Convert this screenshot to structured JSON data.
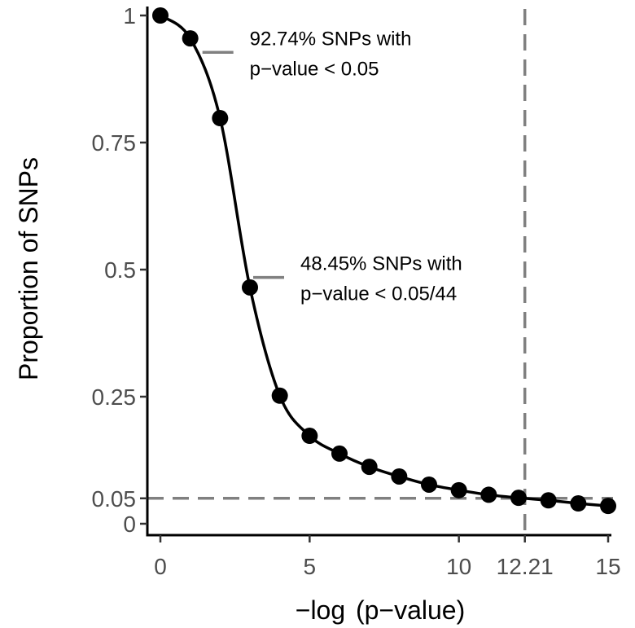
{
  "chart_data": {
    "type": "line",
    "xlabel": "−log  (p−value)",
    "ylabel": "Proportion of SNPs",
    "xlim": [
      0,
      15
    ],
    "ylim": [
      0,
      1
    ],
    "x_ticks": [
      {
        "value": 0,
        "label": "0"
      },
      {
        "value": 5,
        "label": "5"
      },
      {
        "value": 10,
        "label": "10"
      },
      {
        "value": 12.21,
        "label": "12.21"
      },
      {
        "value": 15,
        "label": "15"
      }
    ],
    "y_ticks": [
      {
        "value": 0,
        "label": "0"
      },
      {
        "value": 0.05,
        "label": "0.05"
      },
      {
        "value": 0.25,
        "label": "0.25"
      },
      {
        "value": 0.5,
        "label": "0.5"
      },
      {
        "value": 0.75,
        "label": "0.75"
      },
      {
        "value": 1,
        "label": "1"
      }
    ],
    "grid": false,
    "series": [
      {
        "x": [
          0,
          1,
          2,
          3,
          4,
          5,
          6,
          7,
          8,
          9,
          10,
          11,
          12,
          13,
          14,
          15
        ],
        "y": [
          1.0,
          0.955,
          0.798,
          0.465,
          0.252,
          0.173,
          0.138,
          0.112,
          0.093,
          0.077,
          0.066,
          0.057,
          0.051,
          0.046,
          0.04,
          0.035
        ]
      }
    ],
    "reference_lines": [
      {
        "orientation": "horizontal",
        "value": 0.05,
        "style": "dashed",
        "color": "#808080"
      },
      {
        "orientation": "vertical",
        "value": 12.21,
        "style": "dashed",
        "color": "#808080"
      }
    ],
    "annotations": [
      {
        "lines": [
          "92.74% SNPs with",
          "p−value < 0.05"
        ],
        "x": 1.3,
        "y": 0.9274
      },
      {
        "lines": [
          "48.45% SNPs with",
          "p−value < 0.05/44"
        ],
        "x": 3.0,
        "y": 0.4845
      }
    ],
    "colors": {
      "line": "#000000",
      "point": "#000000",
      "reference": "#808080",
      "tick_label": "#4d4d4d"
    }
  }
}
